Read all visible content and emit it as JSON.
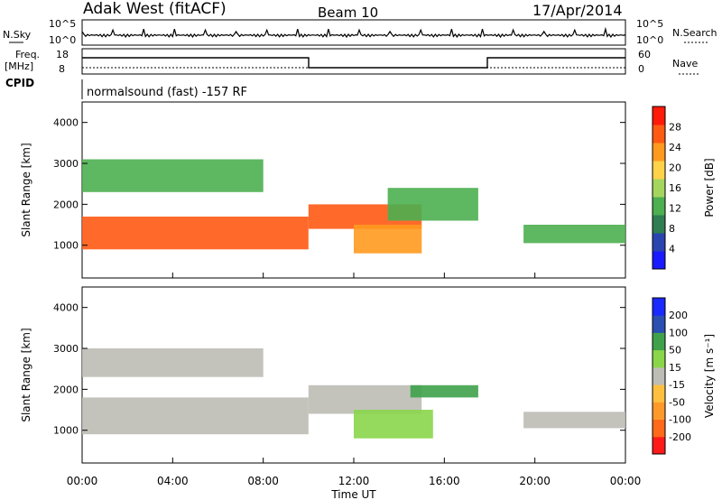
{
  "header": {
    "title": "Adak West (fitACF)",
    "beam": "Beam 10",
    "date": "17/Apr/2014"
  },
  "cpid": {
    "label": "CPID",
    "text": "normalsound (fast) -157 RF"
  },
  "nsky_panel": {
    "left_label": "N.Sky",
    "right_label": "N.Search",
    "left_ticks": [
      "10^5",
      "10^0"
    ],
    "right_ticks": [
      "10^5",
      "10^0"
    ]
  },
  "freq_panel": {
    "left_label_1": "Freq.",
    "left_label_2": "[MHz]",
    "right_label": "Nave",
    "left_ticks": [
      "18",
      "8"
    ],
    "right_ticks": [
      "60",
      "0"
    ]
  },
  "colors": {
    "power": [
      "#1a1aff",
      "#2a45b0",
      "#2f7d52",
      "#4caf50",
      "#a4d65e",
      "#ffd24a",
      "#ff9a1f",
      "#ff5a14",
      "#ff1a0a"
    ],
    "velocity": [
      "#ff1a1a",
      "#ff6a1a",
      "#ff9a2a",
      "#ffc040",
      "#bdbdb5",
      "#8ad64a",
      "#3fa24a",
      "#2a4fb0",
      "#1a2aff"
    ]
  },
  "chart_data": [
    {
      "type": "heatmap",
      "name": "power",
      "ylabel": "Slant Range [km]",
      "yticks": [
        "4000",
        "3000",
        "2000",
        "1000"
      ],
      "ylim": [
        200,
        4500
      ],
      "xticks": [
        "00:00",
        "04:00",
        "08:00",
        "12:00",
        "16:00",
        "20:00",
        "00:00"
      ],
      "xlim": [
        0,
        24
      ],
      "colorbar_label": "Power [dB]",
      "colorbar_ticks": [
        "28",
        "24",
        "20",
        "16",
        "12",
        "8",
        "4"
      ],
      "regions": [
        {
          "start": 0.0,
          "end": 10.0,
          "lo": 900,
          "hi": 1700,
          "value": 26
        },
        {
          "start": 10.0,
          "end": 15.0,
          "lo": 1400,
          "hi": 2000,
          "value": 24
        },
        {
          "start": 12.0,
          "end": 15.0,
          "lo": 800,
          "hi": 1500,
          "value": 20
        },
        {
          "start": 13.5,
          "end": 17.5,
          "lo": 1600,
          "hi": 2400,
          "value": 12
        },
        {
          "start": 0.0,
          "end": 8.0,
          "lo": 2300,
          "hi": 3100,
          "value": 10
        },
        {
          "start": 19.5,
          "end": 24.0,
          "lo": 1050,
          "hi": 1500,
          "value": 10
        }
      ]
    },
    {
      "type": "heatmap",
      "name": "velocity",
      "ylabel": "Slant Range [km]",
      "yticks": [
        "4000",
        "3000",
        "2000",
        "1000"
      ],
      "ylim": [
        200,
        4500
      ],
      "xticks": [
        "00:00",
        "04:00",
        "08:00",
        "12:00",
        "16:00",
        "20:00",
        "00:00"
      ],
      "xlim": [
        0,
        24
      ],
      "xlabel": "Time UT",
      "colorbar_label": "Velocity [m s⁻¹]",
      "colorbar_ticks": [
        "200",
        "100",
        "50",
        "15",
        "-15",
        "-50",
        "-100",
        "-200"
      ],
      "regions": [
        {
          "start": 0.0,
          "end": 10.0,
          "lo": 900,
          "hi": 1800,
          "value": 0
        },
        {
          "start": 10.0,
          "end": 15.0,
          "lo": 1400,
          "hi": 2100,
          "value": 0
        },
        {
          "start": 12.0,
          "end": 15.5,
          "lo": 800,
          "hi": 1500,
          "value": 40
        },
        {
          "start": 14.5,
          "end": 17.5,
          "lo": 1800,
          "hi": 2100,
          "value": 120
        },
        {
          "start": 0.0,
          "end": 8.0,
          "lo": 2300,
          "hi": 3000,
          "value": 0
        },
        {
          "start": 19.5,
          "end": 24.0,
          "lo": 1050,
          "hi": 1450,
          "value": 0
        }
      ]
    }
  ]
}
